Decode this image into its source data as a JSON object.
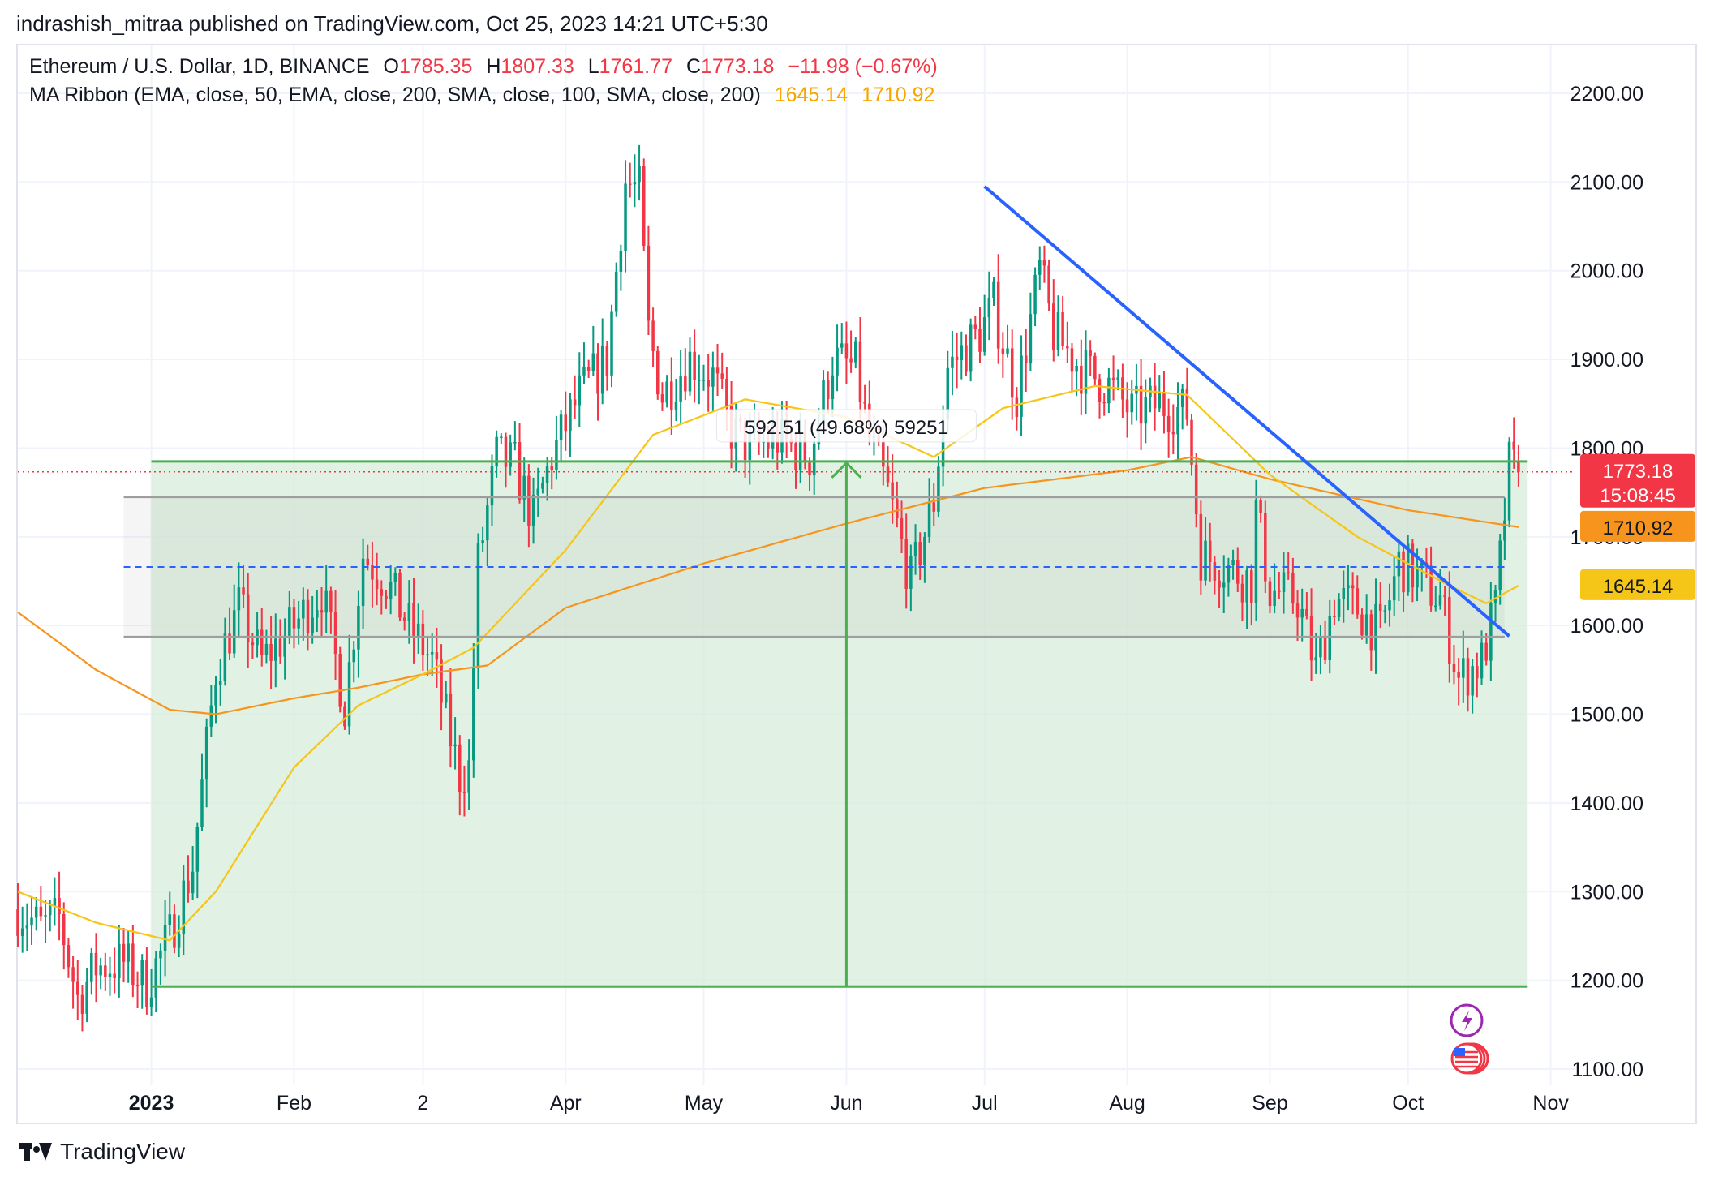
{
  "header": {
    "published_text": "indrashish_mitraa published on TradingView.com, Oct 25, 2023 14:21 UTC+5:30"
  },
  "legend": {
    "symbol_text": "Ethereum / U.S. Dollar, 1D, BINANCE",
    "open_label": "O",
    "open_value": "1785.35",
    "high_label": "H",
    "high_value": "1807.33",
    "low_label": "L",
    "low_value": "1761.77",
    "close_label": "C",
    "close_value": "1773.18",
    "change_text": "−11.98 (−0.67%)",
    "indicator_text": "MA Ribbon (EMA, close, 50, EMA, close, 200, SMA, close, 100, SMA, close, 200)",
    "indicator_value_1": "1645.14",
    "indicator_value_2": "1710.92"
  },
  "price_tags": {
    "last_price": "1773.18",
    "countdown": "15:08:45",
    "ma_1": "1710.92",
    "ma_2": "1645.14"
  },
  "measure_label": "592.51 (49.68%) 59251",
  "footer": {
    "brand": "TradingView"
  },
  "colors": {
    "up": "#089981",
    "down": "#f23645",
    "ema50": "#f5c518",
    "ema200": "#f7941d",
    "trendline": "#2962ff",
    "range_fill": "#d7ecd9",
    "range_line": "#4caf50",
    "box_line": "#9e9e9e",
    "dash": "#2962ff",
    "price_line": "#f23645"
  },
  "chart_data": {
    "type": "candlestick",
    "y_ticks": [
      "2200.00",
      "2100.00",
      "2000.00",
      "1900.00",
      "1800.00",
      "1700.00",
      "1600.00",
      "1500.00",
      "1400.00",
      "1300.00",
      "1200.00",
      "1100.00"
    ],
    "y_range": [
      1100,
      2200
    ],
    "x_ticks": [
      {
        "label": "2023",
        "date": "2023-01-01",
        "bold": true
      },
      {
        "label": "Feb",
        "date": "2023-02-01"
      },
      {
        "label": "2",
        "date": "2023-03-01"
      },
      {
        "label": "Apr",
        "date": "2023-04-01"
      },
      {
        "label": "May",
        "date": "2023-05-01"
      },
      {
        "label": "Jun",
        "date": "2023-06-01"
      },
      {
        "label": "Jul",
        "date": "2023-07-01"
      },
      {
        "label": "Aug",
        "date": "2023-08-01"
      },
      {
        "label": "Sep",
        "date": "2023-09-01"
      },
      {
        "label": "Oct",
        "date": "2023-10-01"
      },
      {
        "label": "Nov",
        "date": "2023-11-01"
      }
    ],
    "x_range": [
      "2022-12-03",
      "2023-11-06"
    ],
    "last_close": 1773.18,
    "daily_close_anchors": [
      [
        "2022-12-03",
        1280
      ],
      [
        "2022-12-08",
        1260
      ],
      [
        "2022-12-12",
        1270
      ],
      [
        "2022-12-16",
        1180
      ],
      [
        "2022-12-20",
        1215
      ],
      [
        "2022-12-26",
        1220
      ],
      [
        "2022-12-31",
        1195
      ],
      [
        "2023-01-05",
        1250
      ],
      [
        "2023-01-10",
        1330
      ],
      [
        "2023-01-15",
        1550
      ],
      [
        "2023-01-20",
        1620
      ],
      [
        "2023-01-25",
        1560
      ],
      [
        "2023-02-01",
        1600
      ],
      [
        "2023-02-07",
        1640
      ],
      [
        "2023-02-12",
        1510
      ],
      [
        "2023-02-16",
        1680
      ],
      [
        "2023-02-21",
        1650
      ],
      [
        "2023-02-26",
        1600
      ],
      [
        "2023-03-03",
        1560
      ],
      [
        "2023-03-09",
        1430
      ],
      [
        "2023-03-11",
        1440
      ],
      [
        "2023-03-13",
        1670
      ],
      [
        "2023-03-17",
        1790
      ],
      [
        "2023-03-21",
        1780
      ],
      [
        "2023-03-25",
        1720
      ],
      [
        "2023-03-29",
        1790
      ],
      [
        "2023-04-04",
        1860
      ],
      [
        "2023-04-10",
        1900
      ],
      [
        "2023-04-14",
        2100
      ],
      [
        "2023-04-17",
        2090
      ],
      [
        "2023-04-19",
        1930
      ],
      [
        "2023-04-22",
        1860
      ],
      [
        "2023-04-28",
        1900
      ],
      [
        "2023-05-03",
        1880
      ],
      [
        "2023-05-07",
        1820
      ],
      [
        "2023-05-11",
        1800
      ],
      [
        "2023-05-17",
        1810
      ],
      [
        "2023-05-24",
        1790
      ],
      [
        "2023-05-29",
        1900
      ],
      [
        "2023-06-03",
        1890
      ],
      [
        "2023-06-06",
        1810
      ],
      [
        "2023-06-10",
        1750
      ],
      [
        "2023-06-15",
        1650
      ],
      [
        "2023-06-20",
        1740
      ],
      [
        "2023-06-23",
        1890
      ],
      [
        "2023-06-30",
        1930
      ],
      [
        "2023-07-03",
        1960
      ],
      [
        "2023-07-08",
        1860
      ],
      [
        "2023-07-13",
        2000
      ],
      [
        "2023-07-16",
        1930
      ],
      [
        "2023-07-22",
        1890
      ],
      [
        "2023-07-28",
        1870
      ],
      [
        "2023-08-02",
        1840
      ],
      [
        "2023-08-08",
        1850
      ],
      [
        "2023-08-14",
        1840
      ],
      [
        "2023-08-17",
        1680
      ],
      [
        "2023-08-21",
        1670
      ],
      [
        "2023-08-28",
        1650
      ],
      [
        "2023-08-29",
        1730
      ],
      [
        "2023-09-01",
        1640
      ],
      [
        "2023-09-07",
        1630
      ],
      [
        "2023-09-11",
        1550
      ],
      [
        "2023-09-15",
        1630
      ],
      [
        "2023-09-20",
        1620
      ],
      [
        "2023-09-25",
        1590
      ],
      [
        "2023-09-29",
        1670
      ],
      [
        "2023-10-02",
        1660
      ],
      [
        "2023-10-08",
        1630
      ],
      [
        "2023-10-12",
        1540
      ],
      [
        "2023-10-17",
        1560
      ],
      [
        "2023-10-20",
        1620
      ],
      [
        "2023-10-23",
        1780
      ],
      [
        "2023-10-25",
        1773
      ]
    ],
    "ema50_anchors": [
      [
        "2022-12-03",
        1300
      ],
      [
        "2022-12-20",
        1265
      ],
      [
        "2023-01-05",
        1245
      ],
      [
        "2023-01-15",
        1300
      ],
      [
        "2023-02-01",
        1440
      ],
      [
        "2023-02-15",
        1510
      ],
      [
        "2023-03-01",
        1545
      ],
      [
        "2023-03-12",
        1575
      ],
      [
        "2023-04-01",
        1685
      ],
      [
        "2023-04-20",
        1815
      ],
      [
        "2023-05-10",
        1855
      ],
      [
        "2023-06-01",
        1835
      ],
      [
        "2023-06-20",
        1790
      ],
      [
        "2023-07-05",
        1845
      ],
      [
        "2023-07-25",
        1870
      ],
      [
        "2023-08-14",
        1860
      ],
      [
        "2023-09-01",
        1770
      ],
      [
        "2023-09-20",
        1700
      ],
      [
        "2023-10-10",
        1645
      ],
      [
        "2023-10-18",
        1625
      ],
      [
        "2023-10-25",
        1645
      ]
    ],
    "ema200_anchors": [
      [
        "2022-12-03",
        1615
      ],
      [
        "2022-12-20",
        1550
      ],
      [
        "2023-01-05",
        1505
      ],
      [
        "2023-01-15",
        1500
      ],
      [
        "2023-02-01",
        1518
      ],
      [
        "2023-02-15",
        1530
      ],
      [
        "2023-03-01",
        1545
      ],
      [
        "2023-03-15",
        1555
      ],
      [
        "2023-04-01",
        1620
      ],
      [
        "2023-05-01",
        1670
      ],
      [
        "2023-06-01",
        1715
      ],
      [
        "2023-07-01",
        1755
      ],
      [
        "2023-08-01",
        1775
      ],
      [
        "2023-08-15",
        1790
      ],
      [
        "2023-09-01",
        1765
      ],
      [
        "2023-10-01",
        1730
      ],
      [
        "2023-10-25",
        1711
      ]
    ],
    "range_zone": {
      "start": "2023-01-01",
      "end": "2023-10-27",
      "low": 1193,
      "high": 1785
    },
    "box_zone": {
      "start": "2022-12-26",
      "end": "2023-10-22",
      "top": 1745,
      "bottom": 1587,
      "mid": 1666
    },
    "measure_arrow": {
      "date": "2023-06-01",
      "from": 1193,
      "to": 1785
    },
    "trendline": {
      "start": [
        "2023-07-01",
        2095
      ],
      "end": [
        "2023-10-23",
        1588
      ]
    }
  }
}
